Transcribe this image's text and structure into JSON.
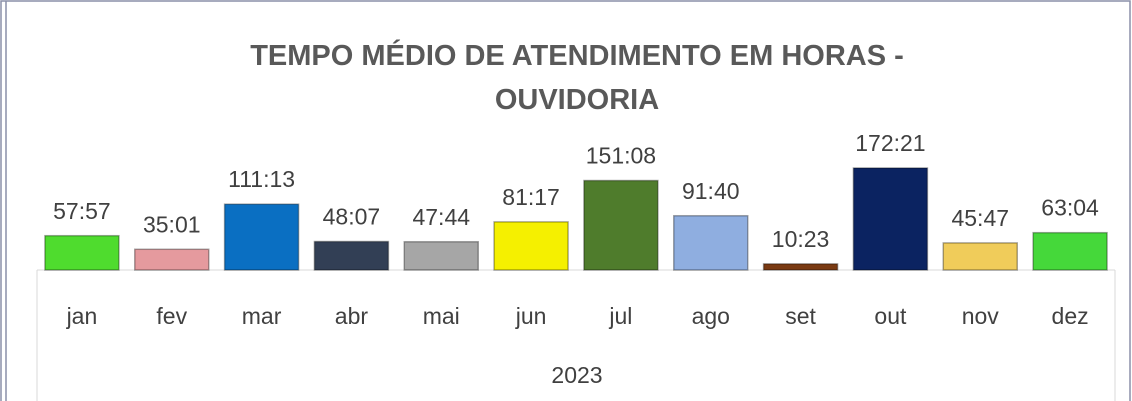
{
  "chart_data": {
    "type": "bar",
    "title": "TEMPO MÉDIO DE ATENDIMENTO EM HORAS - OUVIDORIA",
    "categories": [
      "jan",
      "fev",
      "mar",
      "abr",
      "mai",
      "jun",
      "jul",
      "ago",
      "set",
      "out",
      "nov",
      "dez"
    ],
    "group_label": "2023",
    "values": [
      57.95,
      35.0167,
      111.2167,
      48.1167,
      47.7333,
      81.2833,
      151.1333,
      91.6667,
      10.3833,
      172.35,
      45.7833,
      63.0667
    ],
    "value_labels": [
      "57:57",
      "35:01",
      "111:13",
      "48:07",
      "47:44",
      "81:17",
      "151:08",
      "91:40",
      "10:23",
      "172:21",
      "45:47",
      "63:04"
    ],
    "colors": [
      "#4fdc2e",
      "#e59a9e",
      "#0a6fc2",
      "#323f55",
      "#a6a6a6",
      "#f5f000",
      "#4f7c2c",
      "#8faee0",
      "#7a3a12",
      "#0b2361",
      "#f0cc5a",
      "#45d83a"
    ]
  }
}
